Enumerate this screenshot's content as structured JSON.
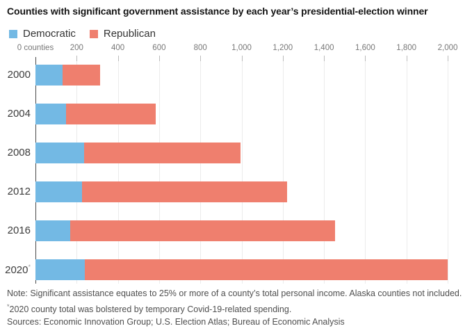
{
  "title": "Counties with significant government assistance by each year’s presidential-election winner",
  "legend": [
    {
      "label": "Democratic",
      "color": "#73b9e4"
    },
    {
      "label": "Republican",
      "color": "#ef7f6e"
    }
  ],
  "chart_data": {
    "type": "bar",
    "orientation": "horizontal",
    "stacked": true,
    "title": "Counties with significant government assistance by each year’s presidential-election winner",
    "categories": [
      "2000",
      "2004",
      "2008",
      "2012",
      "2016",
      "2020"
    ],
    "category_suffix": {
      "2020": "*"
    },
    "series": [
      {
        "name": "Democratic",
        "color": "#73b9e4",
        "values": [
          130,
          150,
          235,
          225,
          170,
          240
        ]
      },
      {
        "name": "Republican",
        "color": "#ef7f6e",
        "values": [
          185,
          435,
          760,
          995,
          1285,
          1760
        ]
      }
    ],
    "ticks": [
      0,
      200,
      400,
      600,
      800,
      1000,
      1200,
      1400,
      1600,
      1800,
      2000
    ],
    "tick_labels": [
      "0 counties",
      "200",
      "400",
      "600",
      "800",
      "1,000",
      "1,200",
      "1,400",
      "1,600",
      "1,800",
      "2,000"
    ],
    "xlim": [
      0,
      2000
    ],
    "grid": true,
    "legend_position": "top-left"
  },
  "notes": {
    "note": "Note: Significant assistance equates to 25% or more of a county’s total personal income. Alaska counties not included.",
    "footnote_mark": "*",
    "footnote": "2020 county total was bolstered by temporary Covid-19-related spending.",
    "sources": "Sources: Economic Innovation Group; U.S. Election Atlas; Bureau of Economic Analysis"
  }
}
